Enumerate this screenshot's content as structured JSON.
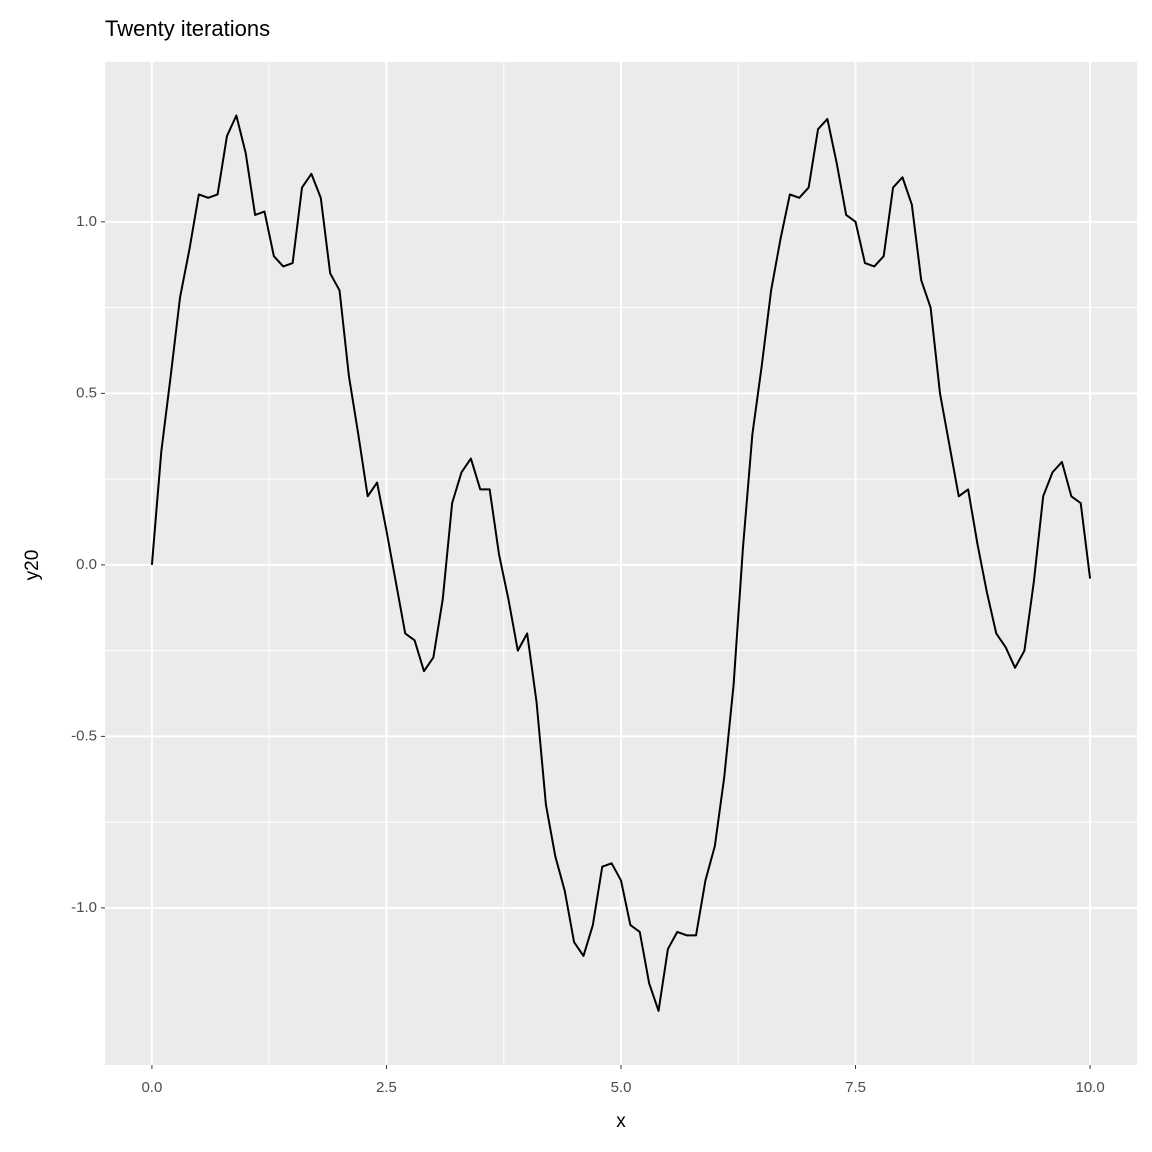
{
  "chart_data": {
    "type": "line",
    "title": "Twenty iterations",
    "x_label": "x",
    "y_label": "y20",
    "x": [
      0,
      0.1,
      0.2,
      0.3,
      0.4,
      0.5,
      0.6,
      0.7,
      0.8,
      0.9,
      1,
      1.1,
      1.2,
      1.3,
      1.4,
      1.5,
      1.6,
      1.7,
      1.8,
      1.9,
      2,
      2.1,
      2.2,
      2.3,
      2.4,
      2.5,
      2.6,
      2.7,
      2.8,
      2.9,
      3,
      3.1,
      3.2,
      3.3,
      3.4,
      3.5,
      3.6,
      3.7,
      3.8,
      3.9,
      4,
      4.1,
      4.2,
      4.3,
      4.4,
      4.5,
      4.6,
      4.7,
      4.8,
      4.9,
      5,
      5.1,
      5.2,
      5.3,
      5.4,
      5.5,
      5.6,
      5.7,
      5.8,
      5.9,
      6,
      6.1,
      6.2,
      6.3,
      6.4,
      6.5,
      6.6,
      6.7,
      6.8,
      6.9,
      7,
      7.1,
      7.2,
      7.3,
      7.4,
      7.5,
      7.6,
      7.7,
      7.8,
      7.9,
      8,
      8.1,
      8.2,
      8.3,
      8.4,
      8.5,
      8.6,
      8.7,
      8.8,
      8.9,
      9,
      9.1,
      9.2,
      9.3,
      9.4,
      9.5,
      9.6,
      9.7,
      9.8,
      9.9,
      10
    ],
    "series": [
      {
        "name": "y20",
        "color": "#000000",
        "values": [
          0,
          0.33,
          0.55,
          0.78,
          0.92,
          1.08,
          1.07,
          1.08,
          1.25,
          1.31,
          1.2,
          1.02,
          1.03,
          0.9,
          0.87,
          0.88,
          1.1,
          1.14,
          1.07,
          0.85,
          0.8,
          0.55,
          0.38,
          0.2,
          0.24,
          0.1,
          -0.05,
          -0.2,
          -0.22,
          -0.31,
          -0.27,
          -0.1,
          0.18,
          0.27,
          0.31,
          0.22,
          0.22,
          0.03,
          -0.1,
          -0.25,
          -0.2,
          -0.4,
          -0.7,
          -0.85,
          -0.95,
          -1.1,
          -1.14,
          -1.05,
          -0.88,
          -0.87,
          -0.92,
          -1.05,
          -1.07,
          -1.22,
          -1.3,
          -1.12,
          -1.07,
          -1.08,
          -1.08,
          -0.92,
          -0.82,
          -0.62,
          -0.35,
          0.05,
          0.38,
          0.58,
          0.8,
          0.95,
          1.08,
          1.07,
          1.1,
          1.27,
          1.3,
          1.17,
          1.02,
          1,
          0.88,
          0.87,
          0.9,
          1.1,
          1.13,
          1.05,
          0.83,
          0.75,
          0.5,
          0.35,
          0.2,
          0.22,
          0.06,
          -0.08,
          -0.2,
          -0.24,
          -0.3,
          -0.25,
          -0.05,
          0.2,
          0.27,
          0.3,
          0.2,
          0.18,
          -0.04
        ]
      }
    ],
    "xlim": [
      -0.5,
      10.5
    ],
    "ylim": [
      -1.458,
      1.466
    ],
    "xticks": [
      {
        "value": 0,
        "label": "0.0"
      },
      {
        "value": 2.5,
        "label": "2.5"
      },
      {
        "value": 5,
        "label": "5.0"
      },
      {
        "value": 7.5,
        "label": "7.5"
      },
      {
        "value": 10,
        "label": "10.0"
      }
    ],
    "yticks": [
      {
        "value": -1,
        "label": "-1.0"
      },
      {
        "value": -0.5,
        "label": "-0.5"
      },
      {
        "value": 0,
        "label": "0.0"
      },
      {
        "value": 0.5,
        "label": "0.5"
      },
      {
        "value": 1,
        "label": "1.0"
      }
    ],
    "grid": true
  }
}
